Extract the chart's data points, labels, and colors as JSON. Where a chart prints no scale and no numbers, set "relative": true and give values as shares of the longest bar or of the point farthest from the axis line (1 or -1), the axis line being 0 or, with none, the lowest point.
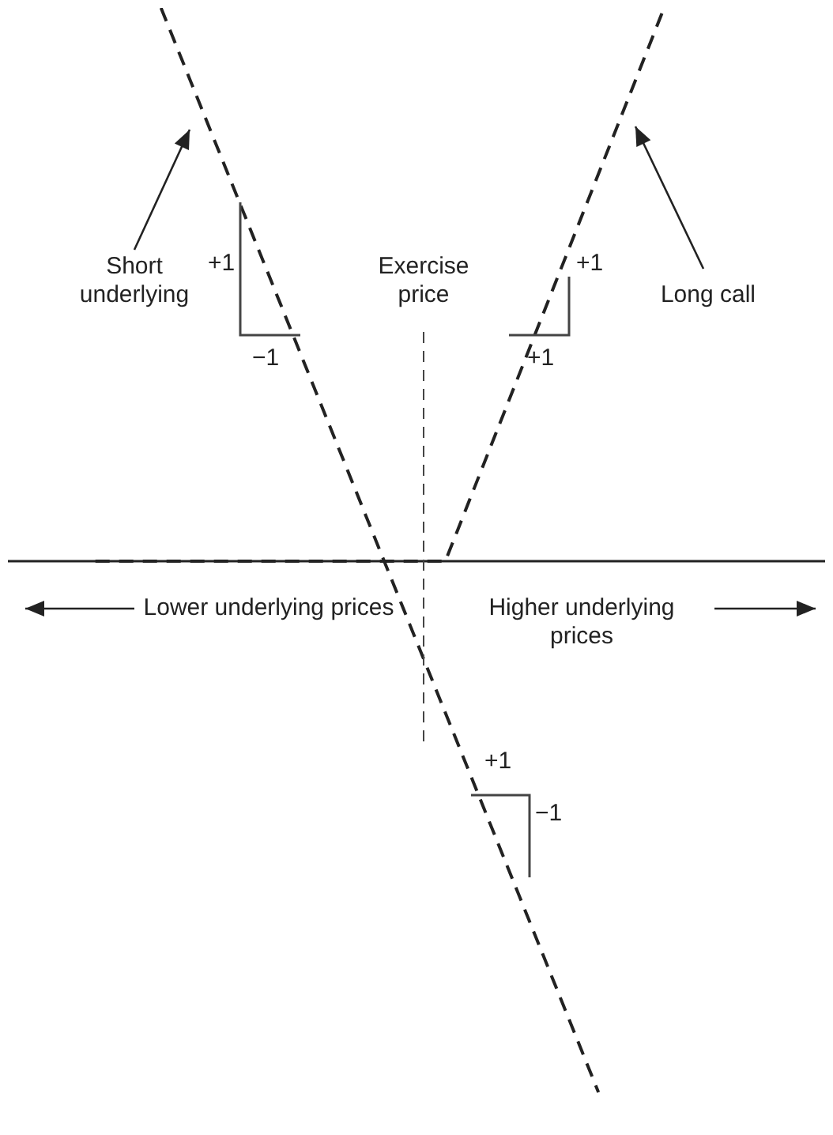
{
  "chart_data": {
    "type": "line",
    "relative": true,
    "legend": false,
    "marker": "none",
    "line_style": "dashed",
    "categories": [
      null,
      null,
      null,
      null,
      null,
      null,
      null,
      null,
      null,
      null,
      null,
      null,
      null,
      null,
      null,
      null,
      null,
      null,
      null,
      null,
      null,
      null,
      null,
      null,
      null,
      null,
      null,
      null,
      null,
      null,
      null,
      null,
      null,
      null,
      null,
      null,
      null,
      null
    ],
    "series": [
      {
        "name": "Short underlying",
        "color": "#222222",
        "values": [
          null,
          null,
          null,
          null,
          null,
          null,
          null,
          1,
          null,
          null,
          null,
          null,
          null,
          null,
          null,
          null,
          null,
          null,
          null,
          null,
          null,
          null,
          null,
          null,
          null,
          null,
          null,
          -0.96,
          null,
          null,
          null,
          null,
          null,
          null,
          null,
          null,
          null,
          null
        ]
      },
      {
        "name": "Long call",
        "color": "#222222",
        "values": [
          null,
          null,
          null,
          null,
          0,
          null,
          null,
          null,
          null,
          null,
          null,
          null,
          null,
          null,
          null,
          null,
          null,
          null,
          null,
          null,
          0,
          null,
          null,
          null,
          null,
          null,
          null,
          null,
          null,
          null,
          1,
          null,
          null,
          null,
          null,
          null,
          null,
          null
        ]
      }
    ],
    "annotations": [
      "Exercise price",
      "Lower underlying prices",
      "Higher underlying prices",
      "+1",
      "−1",
      "+1",
      "+1",
      "+1",
      "−1"
    ]
  }
}
